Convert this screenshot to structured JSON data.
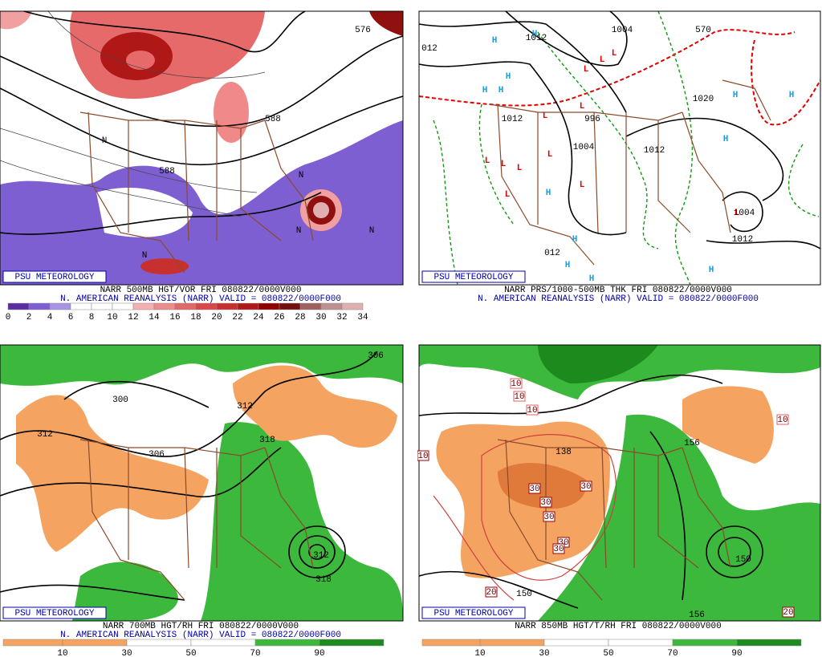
{
  "panels": [
    {
      "badge": "PSU METEOROLOGY",
      "title": "NARR 500MB HGT/VOR FRI 080822/0000V000",
      "subtitle": "N. AMERICAN REANALYSIS (NARR) VALID = 080822/0000F000",
      "legend": [
        0,
        2,
        4,
        6,
        8,
        10,
        12,
        14,
        16,
        18,
        20,
        22,
        24,
        26,
        28,
        30,
        32,
        34
      ],
      "labels": [
        "576",
        "588",
        "588",
        "N",
        "N",
        "N",
        "N",
        "N"
      ]
    },
    {
      "badge": "PSU METEOROLOGY",
      "title": "NARR PRS/1000-500MB THK FRI 080822/0000V000",
      "subtitle": "N. AMERICAN REANALYSIS (NARR) VALID = 080822/0000F000",
      "legend": [],
      "labels": [
        "H",
        "H",
        "H",
        "H",
        "H",
        "H",
        "H",
        "H",
        "H",
        "H",
        "H",
        "H",
        "H",
        "L",
        "L",
        "L",
        "L",
        "L",
        "L",
        "L",
        "L",
        "L",
        "L",
        "L",
        "L",
        "1012",
        "1004",
        "570",
        "012",
        "1012",
        "996",
        "1004",
        "1012",
        "1004",
        "1012",
        "012",
        "1020"
      ]
    },
    {
      "badge": "PSU METEOROLOGY",
      "title": "NARR 700MB HGT/RH FRI 080822/0000V000",
      "subtitle": "N. AMERICAN REANALYSIS (NARR) VALID = 080822/0000F000",
      "legend": [
        10,
        30,
        50,
        70,
        90
      ],
      "labels": [
        "312",
        "306",
        "300",
        "312",
        "318",
        "312",
        "318",
        "306"
      ]
    },
    {
      "badge": "PSU METEOROLOGY",
      "title": "NARR 850MB HGT/T/RH FRI 080822/0000V000",
      "legend": [
        10,
        30,
        50,
        70,
        90
      ],
      "labels": [
        "138",
        "156",
        "150",
        "150",
        "156",
        "30",
        "30",
        "30",
        "30",
        "30",
        "30",
        "10",
        "10",
        "10",
        "10",
        "10",
        "20",
        "20"
      ]
    }
  ]
}
